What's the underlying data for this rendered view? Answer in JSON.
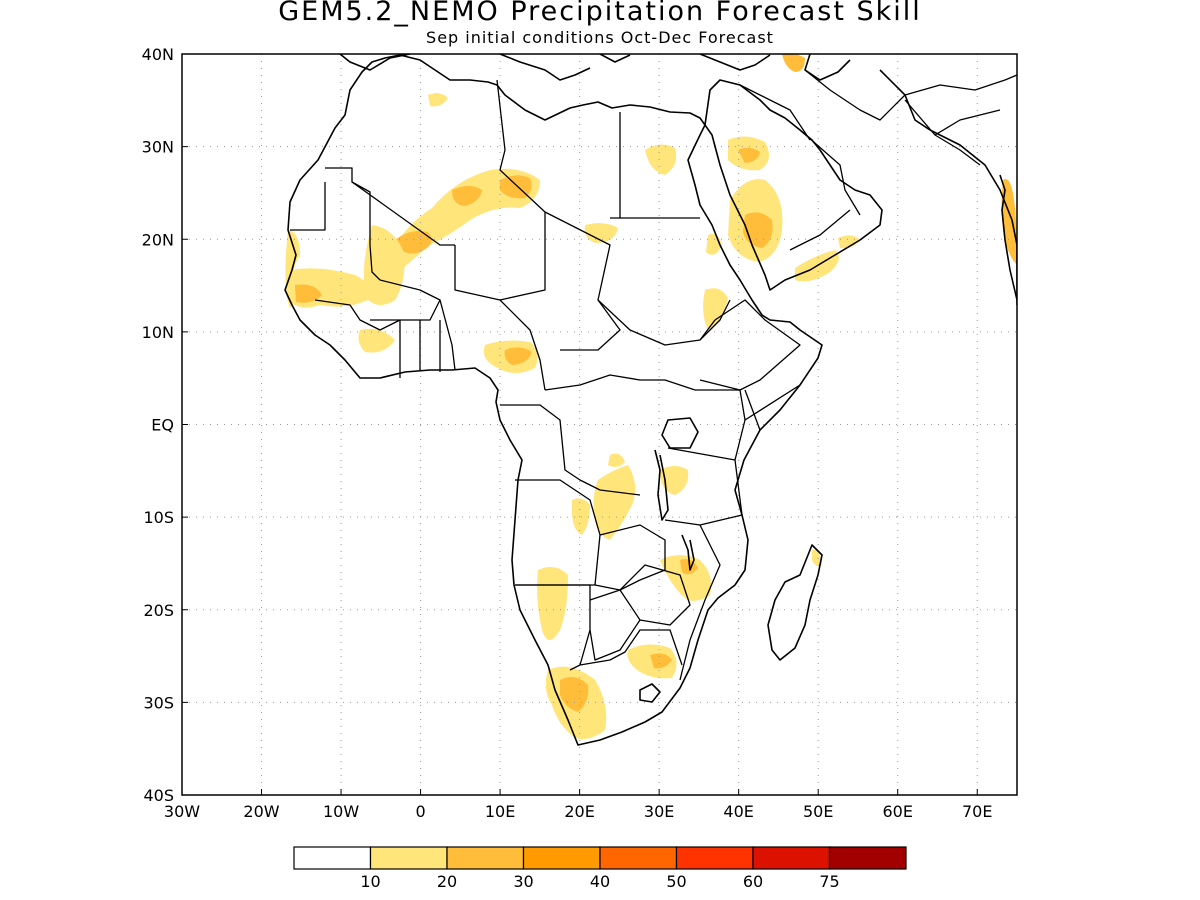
{
  "header": {
    "title": "GEM5.2_NEMO Precipitation Forecast Skill",
    "subtitle": "Sep initial conditions  Oct-Dec Forecast"
  },
  "map": {
    "region": "Africa",
    "lon_range": [
      -30,
      75
    ],
    "lat_range": [
      -40,
      40
    ],
    "grid": true,
    "lon_ticks": [
      "30W",
      "20W",
      "10W",
      "0",
      "10E",
      "20E",
      "30E",
      "40E",
      "50E",
      "60E",
      "70E"
    ],
    "lat_ticks": [
      "40N",
      "30N",
      "20N",
      "10N",
      "EQ",
      "10S",
      "20S",
      "30S",
      "40S"
    ],
    "skill_regions": [
      {
        "name": "Western Sahara / Mauritania",
        "lon": -4,
        "lat": 20,
        "level": 2
      },
      {
        "name": "Central Sahara (Niger/Libya)",
        "lon": 10,
        "lat": 25,
        "level": 2
      },
      {
        "name": "Senegal / Gambia",
        "lon": -14,
        "lat": 14,
        "level": 2
      },
      {
        "name": "Nigeria / Cameroon",
        "lon": 12,
        "lat": 7,
        "level": 2
      },
      {
        "name": "Arabian Peninsula",
        "lon": 42,
        "lat": 21,
        "level": 3
      },
      {
        "name": "Northern Saudi Arabia",
        "lon": 41,
        "lat": 28,
        "level": 2
      },
      {
        "name": "Western India",
        "lon": 74,
        "lat": 21,
        "level": 2
      },
      {
        "name": "Northern Iraq",
        "lon": 46,
        "lat": 37,
        "level": 2
      },
      {
        "name": "Southern DR Congo / Zambia",
        "lon": 25,
        "lat": -10,
        "level": 1
      },
      {
        "name": "Malawi / Mozambique",
        "lon": 35,
        "lat": -16,
        "level": 2
      },
      {
        "name": "Namibia / Angola",
        "lon": 16,
        "lat": -20,
        "level": 1
      },
      {
        "name": "South Africa West",
        "lon": 18,
        "lat": -29,
        "level": 2
      },
      {
        "name": "South Africa East",
        "lon": 29,
        "lat": -25,
        "level": 2
      }
    ]
  },
  "colorbar": {
    "colors": [
      "#ffffff",
      "#ffe57a",
      "#ffbd3a",
      "#ff9a00",
      "#ff6600",
      "#ff3300",
      "#dd1100",
      "#a20000"
    ],
    "labels": [
      "10",
      "20",
      "30",
      "40",
      "50",
      "60",
      "75"
    ]
  }
}
